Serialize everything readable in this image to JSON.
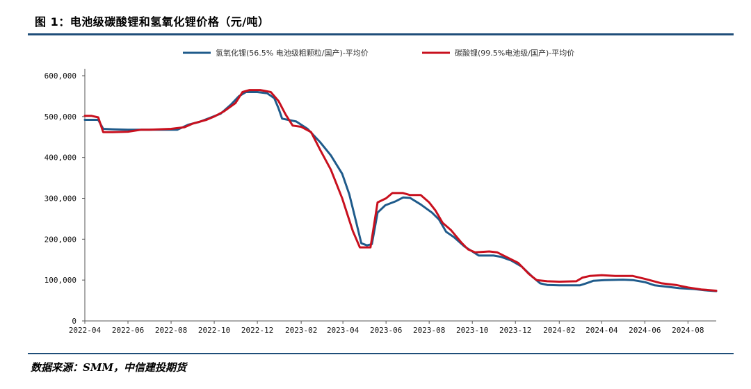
{
  "figure_title": "图 1：电池级碳酸锂和氢氧化锂价格（元/吨）",
  "source": "数据来源：SMM，中信建投期货",
  "colors": {
    "accent_rule": "#1f4e79",
    "series1": "#1f5b8b",
    "series2": "#c8101e"
  },
  "chart_data": {
    "type": "line",
    "title": "",
    "xlabel": "",
    "ylabel": "",
    "ylim": [
      0,
      600000
    ],
    "xlim": [
      "2022-04",
      "2024-09-10"
    ],
    "grid": false,
    "legend_position": "top",
    "y_ticks": [
      0,
      100000,
      200000,
      300000,
      400000,
      500000,
      600000
    ],
    "y_tick_labels": [
      "0",
      "100,000",
      "200,000",
      "300,000",
      "400,000",
      "500,000",
      "600,000"
    ],
    "x_ticks": [
      "2022-04",
      "2022-06",
      "2022-08",
      "2022-10",
      "2022-12",
      "2023-02",
      "2023-04",
      "2023-06",
      "2023-08",
      "2023-10",
      "2023-12",
      "2024-02",
      "2024-04",
      "2024-06",
      "2024-08"
    ],
    "series": [
      {
        "name": "氢氧化锂(56.5% 电池级粗颗粒/国产)-平均价",
        "color": "#1f5b8b",
        "points": [
          [
            "2022-04-01",
            492000
          ],
          [
            "2022-04-20",
            492000
          ],
          [
            "2022-04-27",
            470000
          ],
          [
            "2022-05-10",
            469000
          ],
          [
            "2022-06-01",
            468000
          ],
          [
            "2022-07-01",
            468000
          ],
          [
            "2022-08-01",
            468000
          ],
          [
            "2022-08-10",
            468000
          ],
          [
            "2022-08-25",
            480000
          ],
          [
            "2022-09-10",
            487000
          ],
          [
            "2022-09-25",
            497000
          ],
          [
            "2022-10-10",
            507000
          ],
          [
            "2022-10-25",
            530000
          ],
          [
            "2022-11-05",
            550000
          ],
          [
            "2022-11-15",
            560000
          ],
          [
            "2022-12-01",
            560000
          ],
          [
            "2022-12-15",
            557000
          ],
          [
            "2022-12-25",
            545000
          ],
          [
            "2022-12-31",
            520000
          ],
          [
            "2023-01-05",
            495000
          ],
          [
            "2023-01-25",
            488000
          ],
          [
            "2023-02-10",
            470000
          ],
          [
            "2023-02-28",
            437000
          ],
          [
            "2023-03-15",
            405000
          ],
          [
            "2023-03-31",
            360000
          ],
          [
            "2023-04-10",
            310000
          ],
          [
            "2023-04-20",
            240000
          ],
          [
            "2023-04-27",
            190000
          ],
          [
            "2023-05-05",
            185000
          ],
          [
            "2023-05-12",
            188000
          ],
          [
            "2023-05-20",
            265000
          ],
          [
            "2023-05-31",
            283000
          ],
          [
            "2023-06-15",
            293000
          ],
          [
            "2023-06-25",
            302000
          ],
          [
            "2023-07-05",
            301000
          ],
          [
            "2023-07-20",
            285000
          ],
          [
            "2023-08-05",
            265000
          ],
          [
            "2023-08-15",
            248000
          ],
          [
            "2023-08-25",
            218000
          ],
          [
            "2023-09-05",
            205000
          ],
          [
            "2023-09-20",
            182000
          ],
          [
            "2023-10-01",
            170000
          ],
          [
            "2023-10-10",
            160000
          ],
          [
            "2023-10-31",
            160000
          ],
          [
            "2023-11-10",
            157000
          ],
          [
            "2023-11-25",
            148000
          ],
          [
            "2023-12-10",
            133000
          ],
          [
            "2023-12-25",
            108000
          ],
          [
            "2024-01-05",
            92000
          ],
          [
            "2024-01-15",
            88000
          ],
          [
            "2024-02-01",
            87000
          ],
          [
            "2024-03-01",
            87000
          ],
          [
            "2024-03-10",
            92000
          ],
          [
            "2024-03-20",
            98000
          ],
          [
            "2024-04-05",
            100000
          ],
          [
            "2024-05-01",
            101000
          ],
          [
            "2024-05-15",
            100000
          ],
          [
            "2024-06-01",
            95000
          ],
          [
            "2024-06-15",
            87000
          ],
          [
            "2024-07-01",
            84000
          ],
          [
            "2024-07-20",
            80000
          ],
          [
            "2024-08-10",
            78000
          ],
          [
            "2024-08-25",
            75000
          ],
          [
            "2024-09-10",
            73000
          ]
        ]
      },
      {
        "name": "碳酸锂(99.5%电池级/国产)-平均价",
        "color": "#c8101e",
        "points": [
          [
            "2022-04-01",
            502000
          ],
          [
            "2022-04-10",
            502000
          ],
          [
            "2022-04-20",
            498000
          ],
          [
            "2022-04-27",
            462000
          ],
          [
            "2022-05-10",
            462000
          ],
          [
            "2022-06-01",
            463000
          ],
          [
            "2022-06-20",
            468000
          ],
          [
            "2022-07-01",
            468000
          ],
          [
            "2022-08-01",
            470000
          ],
          [
            "2022-08-20",
            474000
          ],
          [
            "2022-09-01",
            483000
          ],
          [
            "2022-09-20",
            492000
          ],
          [
            "2022-10-01",
            500000
          ],
          [
            "2022-10-15",
            513000
          ],
          [
            "2022-10-31",
            533000
          ],
          [
            "2022-11-10",
            560000
          ],
          [
            "2022-11-20",
            565000
          ],
          [
            "2022-12-05",
            565000
          ],
          [
            "2022-12-20",
            560000
          ],
          [
            "2022-12-31",
            538000
          ],
          [
            "2023-01-10",
            505000
          ],
          [
            "2023-01-20",
            478000
          ],
          [
            "2023-02-01",
            475000
          ],
          [
            "2023-02-15",
            462000
          ],
          [
            "2023-02-28",
            418000
          ],
          [
            "2023-03-15",
            370000
          ],
          [
            "2023-03-31",
            300000
          ],
          [
            "2023-04-15",
            220000
          ],
          [
            "2023-04-25",
            180000
          ],
          [
            "2023-05-10",
            180000
          ],
          [
            "2023-05-20",
            290000
          ],
          [
            "2023-06-01",
            300000
          ],
          [
            "2023-06-10",
            313000
          ],
          [
            "2023-06-25",
            313000
          ],
          [
            "2023-07-05",
            308000
          ],
          [
            "2023-07-20",
            308000
          ],
          [
            "2023-08-01",
            290000
          ],
          [
            "2023-08-10",
            270000
          ],
          [
            "2023-08-20",
            240000
          ],
          [
            "2023-09-01",
            222000
          ],
          [
            "2023-09-15",
            193000
          ],
          [
            "2023-09-25",
            175000
          ],
          [
            "2023-10-05",
            168000
          ],
          [
            "2023-10-25",
            170000
          ],
          [
            "2023-11-05",
            168000
          ],
          [
            "2023-11-20",
            155000
          ],
          [
            "2023-12-05",
            142000
          ],
          [
            "2023-12-20",
            115000
          ],
          [
            "2023-12-31",
            100000
          ],
          [
            "2024-01-15",
            97000
          ],
          [
            "2024-02-01",
            96000
          ],
          [
            "2024-02-25",
            97000
          ],
          [
            "2024-03-05",
            106000
          ],
          [
            "2024-03-15",
            110000
          ],
          [
            "2024-04-01",
            112000
          ],
          [
            "2024-04-20",
            110000
          ],
          [
            "2024-05-15",
            110000
          ],
          [
            "2024-06-01",
            103000
          ],
          [
            "2024-06-25",
            92000
          ],
          [
            "2024-07-15",
            88000
          ],
          [
            "2024-08-01",
            82000
          ],
          [
            "2024-08-20",
            77000
          ],
          [
            "2024-09-10",
            74000
          ]
        ]
      }
    ]
  }
}
